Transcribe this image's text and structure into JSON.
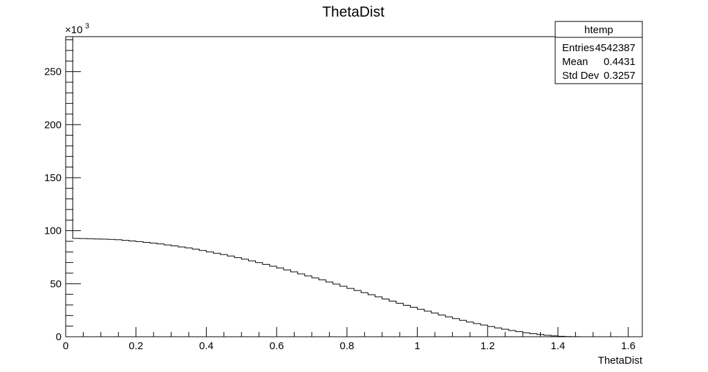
{
  "chart_data": {
    "type": "bar",
    "title": "ThetaDist",
    "xlabel": "ThetaDist",
    "ylabel": "",
    "xlim": [
      0,
      1.64
    ],
    "ylim": [
      0,
      283000
    ],
    "y_multiplier_label": "×10",
    "y_multiplier_exp": "3",
    "x_ticks": [
      0,
      0.2,
      0.4,
      0.6,
      0.8,
      1,
      1.2,
      1.4,
      1.6
    ],
    "x_tick_labels": [
      "0",
      "0.2",
      "0.4",
      "0.6",
      "0.8",
      "1",
      "1.2",
      "1.4",
      "1.6"
    ],
    "y_ticks": [
      0,
      50000,
      100000,
      150000,
      200000,
      250000
    ],
    "y_tick_labels": [
      "0",
      "50",
      "100",
      "150",
      "200",
      "250"
    ],
    "grid": false,
    "bin_width": 0.02,
    "bins_x_start": 0,
    "values": [
      283000,
      92800,
      92600,
      92400,
      92200,
      92000,
      91800,
      91400,
      90900,
      90300,
      89700,
      89000,
      88300,
      87500,
      86600,
      85700,
      84700,
      83700,
      82600,
      81400,
      80100,
      78800,
      77500,
      76100,
      74600,
      73100,
      71500,
      69900,
      68200,
      66500,
      64800,
      63000,
      61200,
      59300,
      57400,
      55500,
      53600,
      51600,
      49600,
      47600,
      45600,
      43600,
      41600,
      39600,
      37600,
      35600,
      33600,
      31600,
      29700,
      27800,
      25900,
      24100,
      22300,
      20500,
      18800,
      17100,
      15500,
      13900,
      12400,
      11000,
      9600,
      8300,
      7100,
      5900,
      4800,
      3800,
      2900,
      2100,
      1400,
      800,
      400,
      150,
      50,
      10,
      0
    ],
    "stats_box": {
      "title": "htemp",
      "rows": [
        {
          "label": "Entries",
          "value": "4542387"
        },
        {
          "label": "Mean",
          "value": "0.4431"
        },
        {
          "label": "Std Dev",
          "value": "0.3257"
        }
      ]
    }
  }
}
